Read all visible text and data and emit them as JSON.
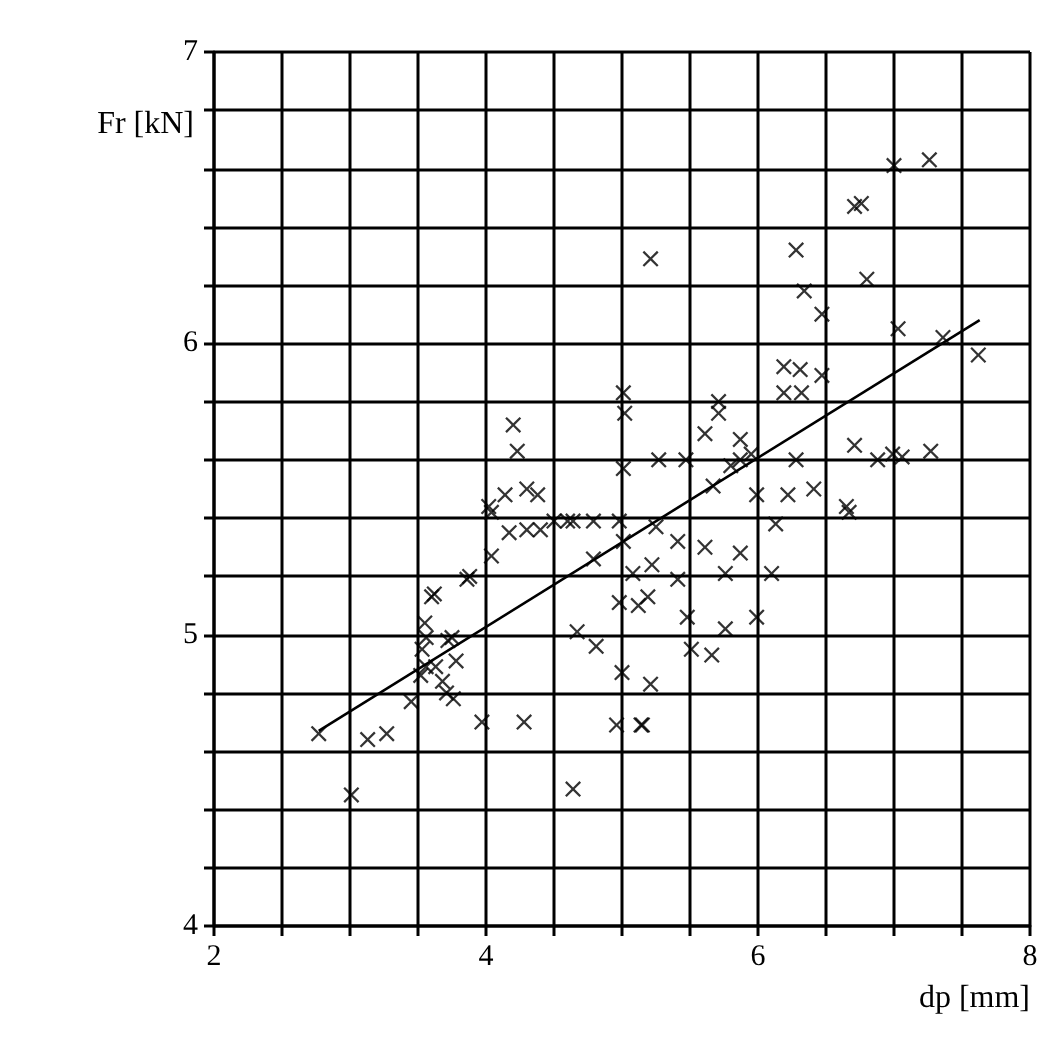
{
  "chart_data": {
    "type": "scatter",
    "xlabel": "dp [mm]",
    "ylabel": "Fr [kN]",
    "xlim": [
      2,
      8
    ],
    "ylim": [
      4,
      7
    ],
    "xticks": [
      2,
      {
        "value": 2.5,
        "label": null
      },
      {
        "value": 3,
        "label": null
      },
      {
        "value": 3.5,
        "label": null
      },
      4,
      {
        "value": 4.5,
        "label": null
      },
      {
        "value": 5,
        "label": null
      },
      {
        "value": 5.5,
        "label": null
      },
      6,
      {
        "value": 6.5,
        "label": null
      },
      {
        "value": 7,
        "label": null
      },
      {
        "value": 7.5,
        "label": null
      },
      8
    ],
    "yticks": [
      4,
      {
        "value": 4.2,
        "label": null
      },
      {
        "value": 4.4,
        "label": null
      },
      {
        "value": 4.6,
        "label": null
      },
      {
        "value": 4.8,
        "label": null
      },
      5,
      {
        "value": 5.2,
        "label": null
      },
      {
        "value": 5.4,
        "label": null
      },
      {
        "value": 5.6,
        "label": null
      },
      {
        "value": 5.8,
        "label": null
      },
      6,
      {
        "value": 6.2,
        "label": null
      },
      {
        "value": 6.4,
        "label": null
      },
      {
        "value": 6.6,
        "label": null
      },
      {
        "value": 6.8,
        "label": null
      },
      7
    ],
    "grid": true,
    "series": [
      {
        "color": "#000000",
        "marker": "cross",
        "x": [
          2.77,
          3.13,
          3.27,
          3.01,
          3.45,
          3.52,
          3.53,
          3.55,
          3.6,
          3.56,
          3.63,
          3.68,
          3.71,
          3.72,
          3.78,
          3.76,
          3.86,
          3.97,
          4.04,
          4.04,
          4.14,
          4.17,
          4.23,
          4.2,
          4.28,
          4.3,
          4.38,
          4.4,
          4.5,
          4.64,
          4.79,
          4.64,
          4.67,
          4.81,
          4.79,
          4.98,
          4.98,
          5.0,
          5.01,
          4.96,
          5.14,
          5.01,
          5.01,
          5.02,
          5.21,
          5.71,
          5.71,
          5.61,
          5.87,
          5.87,
          5.27,
          5.47,
          5.67,
          5.99,
          6.22,
          6.41,
          6.28,
          6.65,
          6.71,
          6.88,
          6.99,
          7.06,
          7.27,
          6.19,
          6.31,
          6.19,
          6.32,
          6.47,
          7.03,
          7.36,
          7.62,
          6.34,
          6.47,
          6.28,
          6.8,
          6.71,
          6.76,
          7.0,
          7.26,
          5.25,
          5.41,
          5.61,
          5.87,
          6.13,
          6.67,
          5.76,
          6.1,
          5.22,
          5.08,
          5.41,
          5.19,
          5.12,
          5.48,
          5.76,
          5.99,
          5.51,
          5.66,
          5.21,
          3.62,
          3.56,
          3.75,
          3.88,
          4.02,
          4.3,
          4.6,
          5.15,
          5.95,
          5.8
        ],
        "values": [
          4.66,
          4.64,
          4.66,
          4.45,
          4.77,
          4.86,
          4.95,
          5.04,
          5.13,
          4.89,
          4.89,
          4.84,
          4.8,
          4.98,
          4.91,
          4.78,
          5.19,
          4.7,
          5.27,
          5.42,
          5.48,
          5.35,
          5.63,
          5.72,
          4.7,
          5.5,
          5.48,
          5.36,
          5.39,
          5.39,
          5.39,
          4.47,
          5.01,
          4.96,
          5.26,
          5.39,
          5.11,
          4.87,
          5.32,
          4.69,
          4.69,
          5.57,
          5.83,
          5.76,
          6.29,
          5.8,
          5.76,
          5.69,
          5.67,
          5.6,
          5.6,
          5.6,
          5.51,
          5.48,
          5.48,
          5.5,
          5.6,
          5.44,
          5.65,
          5.6,
          5.62,
          5.61,
          5.63,
          5.92,
          5.91,
          5.83,
          5.83,
          5.89,
          6.05,
          6.02,
          5.96,
          6.18,
          6.1,
          6.32,
          6.22,
          6.47,
          6.48,
          6.61,
          6.63,
          5.37,
          5.32,
          5.3,
          5.28,
          5.38,
          5.42,
          5.21,
          5.21,
          5.24,
          5.21,
          5.19,
          5.13,
          5.1,
          5.06,
          5.02,
          5.06,
          4.95,
          4.93,
          4.83,
          5.14,
          4.99,
          4.99,
          5.2,
          5.44,
          5.36,
          5.39,
          4.69,
          5.62,
          5.58
        ]
      },
      {
        "type": "line",
        "marker": "none",
        "color": "#000000",
        "x": [
          2.77,
          7.63
        ],
        "values": [
          4.67,
          6.08
        ]
      }
    ]
  }
}
